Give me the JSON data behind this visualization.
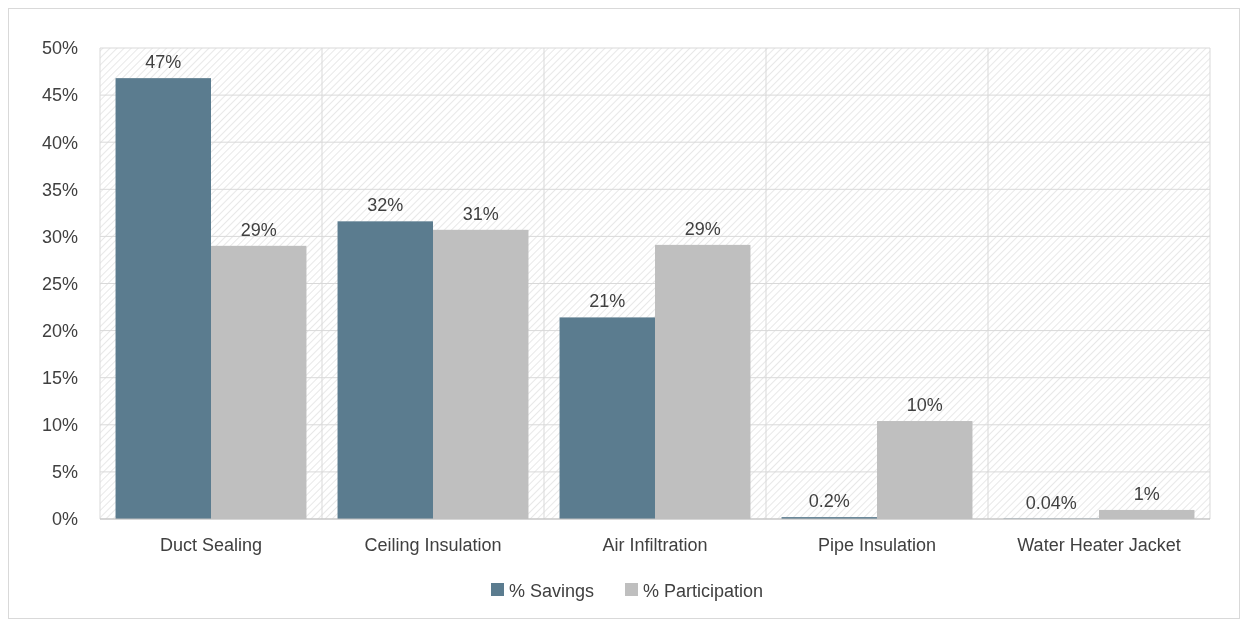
{
  "chart_data": {
    "type": "bar",
    "categories": [
      "Duct Sealing",
      "Ceiling Insulation",
      "Air Infiltration",
      "Pipe Insulation",
      "Water Heater Jacket"
    ],
    "series": [
      {
        "name": "% Savings",
        "color": "#5b7c8f",
        "values": [
          46.8,
          31.6,
          21.4,
          0.2,
          0.04
        ],
        "value_labels": [
          "47%",
          "32%",
          "21%",
          "0.2%",
          "0.04%"
        ]
      },
      {
        "name": "% Participation",
        "color": "#bfbfbf",
        "values": [
          29.0,
          30.7,
          29.1,
          10.4,
          0.96
        ],
        "value_labels": [
          "29%",
          "31%",
          "29%",
          "10%",
          "1%"
        ]
      }
    ],
    "ylim": [
      0,
      50
    ],
    "yticks": [
      {
        "value": 0,
        "label": "0%"
      },
      {
        "value": 5,
        "label": "5%"
      },
      {
        "value": 10,
        "label": "10%"
      },
      {
        "value": 15,
        "label": "15%"
      },
      {
        "value": 20,
        "label": "20%"
      },
      {
        "value": 25,
        "label": "25%"
      },
      {
        "value": 30,
        "label": "30%"
      },
      {
        "value": 35,
        "label": "35%"
      },
      {
        "value": 40,
        "label": "40%"
      },
      {
        "value": 45,
        "label": "45%"
      },
      {
        "value": 50,
        "label": "50%"
      }
    ],
    "grid": true,
    "legend": "bottom"
  }
}
